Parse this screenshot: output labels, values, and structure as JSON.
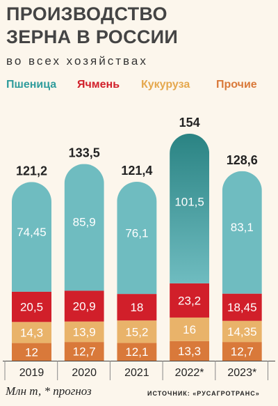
{
  "header": {
    "title_line1": "ПРОИЗВОДСТВО",
    "title_line2": "ЗЕРНА В РОССИИ",
    "subtitle": "во всех хозяйствах"
  },
  "footer": {
    "unit": "Млн т, * прогноз",
    "source": "ИСТОЧНИК: «РУСАГРОТРАНС»"
  },
  "chart_data": {
    "type": "bar",
    "stacked": true,
    "categories": [
      "2019",
      "2020",
      "2021",
      "2022*",
      "2023*"
    ],
    "totals": [
      "121,2",
      "133,5",
      "121,4",
      "154",
      "128,6"
    ],
    "total_values": [
      121.2,
      133.5,
      121.4,
      154,
      128.6
    ],
    "series": [
      {
        "name": "Прочие",
        "values": [
          12,
          12.7,
          12.1,
          13.3,
          12.7
        ],
        "labels": [
          "12",
          "12,7",
          "12,1",
          "13,3",
          "12,7"
        ],
        "color": "#d9793a"
      },
      {
        "name": "Кукуруза",
        "values": [
          14.3,
          13.9,
          15.2,
          16,
          14.35
        ],
        "labels": [
          "14,3",
          "13,9",
          "15,2",
          "16",
          "14,35"
        ],
        "color": "#e9b36a"
      },
      {
        "name": "Ячмень",
        "values": [
          20.5,
          20.9,
          18,
          23.2,
          18.45
        ],
        "labels": [
          "20,5",
          "20,9",
          "18",
          "23,2",
          "18,45"
        ],
        "color": "#d11f2a"
      },
      {
        "name": "Пшеница",
        "values": [
          74.45,
          85.9,
          76.1,
          101.5,
          83.1
        ],
        "labels": [
          "74,45",
          "85,9",
          "76,1",
          "101,5",
          "83,1"
        ],
        "color": "#6fbcc0"
      }
    ],
    "legend_order": [
      "Пшеница",
      "Ячмень",
      "Кукуруза",
      "Прочие"
    ],
    "legend_colors": [
      "#2f9c9c",
      "#d11f2a",
      "#e5a84e",
      "#d9793a"
    ],
    "highlight_color": "#2a8383",
    "highlight_category": "2022*",
    "legend_position": "top",
    "grid": false
  }
}
